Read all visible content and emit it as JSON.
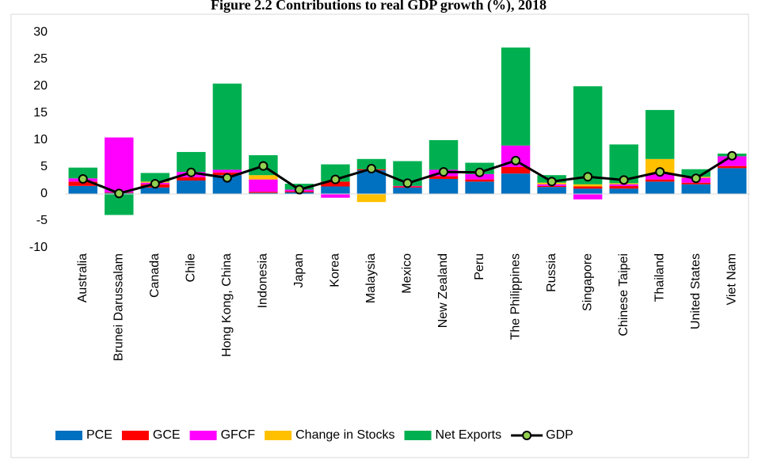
{
  "chart_data": {
    "type": "bar",
    "stacked": true,
    "title": "Figure 2.2 Contributions to real GDP growth (%), 2018",
    "categories": [
      "Australia",
      "Brunei Darussalam",
      "Canada",
      "Chile",
      "Hong Kong, China",
      "Indonesia",
      "Japan",
      "Korea",
      "Malaysia",
      "Mexico",
      "New Zealand",
      "Peru",
      "The Philippines",
      "Russia",
      "Singapore",
      "Chinese Taipei",
      "Thailand",
      "United States",
      "Viet Nam"
    ],
    "series": [
      {
        "name": "PCE",
        "color": "#0070c0",
        "values": [
          1.5,
          0.2,
          1.2,
          2.5,
          3.5,
          0.2,
          0.3,
          1.4,
          4.4,
          1.2,
          2.8,
          2.3,
          3.8,
          1.3,
          1.0,
          1.0,
          2.3,
          1.8,
          4.8
        ]
      },
      {
        "name": "GCE",
        "color": "#ff0000",
        "values": [
          0.8,
          0.1,
          0.6,
          0.6,
          0.5,
          0.2,
          0.2,
          0.9,
          0.2,
          0.2,
          0.5,
          0.4,
          1.2,
          0.2,
          0.4,
          0.5,
          0.4,
          0.3,
          0.4
        ]
      },
      {
        "name": "GFCF",
        "color": "#ff00ff",
        "values": [
          0.6,
          10.2,
          0.3,
          1.0,
          0.5,
          2.3,
          0.3,
          -0.7,
          0,
          0.1,
          1.2,
          1.0,
          4.0,
          0.3,
          -1.0,
          0.3,
          1.0,
          0.9,
          1.8
        ]
      },
      {
        "name": "Change in Stocks",
        "color": "#ffc000",
        "values": [
          0,
          0,
          0.2,
          0,
          0,
          0.8,
          0,
          0,
          -1.5,
          0,
          0,
          0,
          0,
          0.3,
          0.4,
          0.2,
          2.8,
          0.2,
          0
        ]
      },
      {
        "name": "Net Exports",
        "color": "#00b050",
        "values": [
          2.0,
          -3.9,
          1.6,
          3.7,
          16.0,
          3.7,
          1.1,
          3.2,
          1.9,
          4.6,
          5.5,
          2.1,
          18.2,
          1.4,
          18.2,
          7.2,
          9.1,
          1.4,
          0.5
        ]
      },
      {
        "name": "GDP",
        "type": "line",
        "color": "#000000",
        "marker_color": "#92d050",
        "values": [
          2.8,
          0.1,
          1.9,
          4.0,
          3.0,
          5.2,
          0.8,
          2.7,
          4.7,
          2.0,
          4.1,
          4.0,
          6.2,
          2.3,
          3.2,
          2.6,
          4.1,
          2.9,
          7.1
        ]
      }
    ],
    "ylim": [
      -10,
      30
    ],
    "yticks": [
      -10,
      -5,
      0,
      5,
      10,
      15,
      20,
      25,
      30
    ],
    "grid": false,
    "legend": "bottom"
  }
}
